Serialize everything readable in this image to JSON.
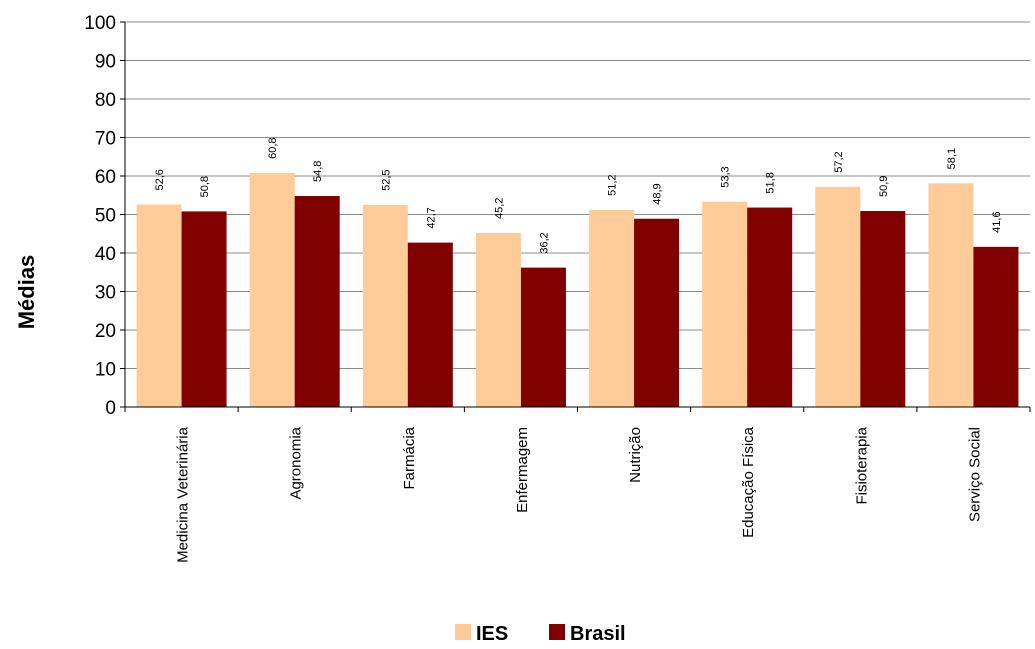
{
  "chart_data": {
    "type": "bar",
    "ylabel": "Médias",
    "xlabel": "",
    "ylim": [
      0,
      100
    ],
    "yticks": [
      0,
      10,
      20,
      30,
      40,
      50,
      60,
      70,
      80,
      90,
      100
    ],
    "grid": true,
    "legend_position": "bottom",
    "categories": [
      "Medicina Veterinária",
      "Agronomia",
      "Farmácia",
      "Enfermagem",
      "Nutrição",
      "Educação Física",
      "Fisioterapia",
      "Serviço Social"
    ],
    "series": [
      {
        "name": "IES",
        "color": "#FFCC99",
        "values": [
          52.6,
          60.8,
          52.5,
          45.2,
          51.2,
          53.3,
          57.2,
          58.1
        ],
        "labels": [
          "52,6",
          "60,8",
          "52,5",
          "45,2",
          "51,2",
          "53,3",
          "57,2",
          "58,1"
        ]
      },
      {
        "name": "Brasil",
        "color": "#800000",
        "values": [
          50.8,
          54.8,
          42.7,
          36.2,
          48.9,
          51.8,
          50.9,
          41.6
        ],
        "labels": [
          "50,8",
          "54,8",
          "42,7",
          "36,2",
          "48,9",
          "51,8",
          "50,9",
          "41,6"
        ]
      }
    ]
  }
}
